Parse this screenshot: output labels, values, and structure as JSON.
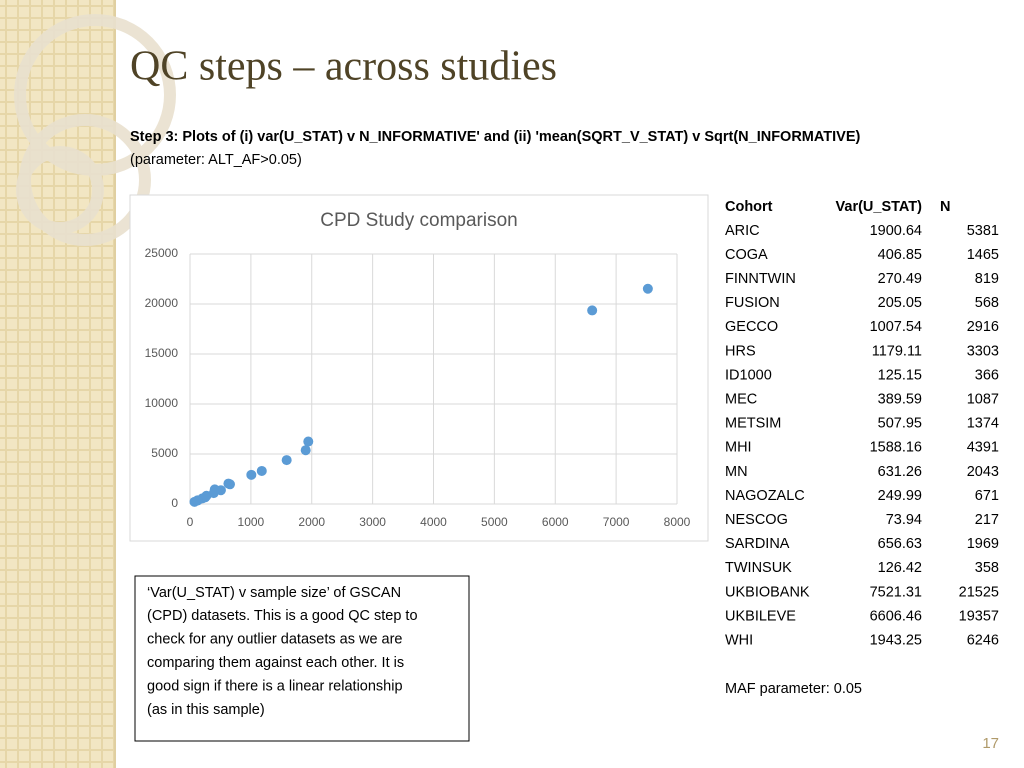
{
  "header": {
    "title": "QC steps – across studies"
  },
  "subtitle": {
    "lines": [
      "Step 3: Plots of (i) var(U_STAT) v N_INFORMATIVE' and (ii) 'mean(SQRT_V_STAT) v Sqrt(N_INFORMATIVE)",
      "(parameter: ALT_AF>0.05)"
    ]
  },
  "chart_data": {
    "type": "scatter",
    "title": "CPD Study comparison",
    "x": [
      1900.64,
      406.85,
      270.49,
      205.05,
      1007.54,
      1179.11,
      125.15,
      389.59,
      507.95,
      1588.16,
      631.26,
      249.99,
      73.94,
      656.63,
      126.42,
      7521.31,
      6606.46,
      1943.25
    ],
    "values": [
      5381,
      1465,
      819,
      568,
      2916,
      3303,
      366,
      1087,
      1374,
      4391,
      2043,
      671,
      217,
      1969,
      358,
      21525,
      19357,
      6246
    ],
    "color": "#5b9bd5",
    "xlim": [
      0,
      8000
    ],
    "xticks": [
      0,
      1000,
      2000,
      3000,
      4000,
      5000,
      6000,
      7000,
      8000
    ],
    "ylim": [
      0,
      25000
    ],
    "yticks": [
      0,
      5000,
      10000,
      15000,
      20000,
      25000
    ],
    "grid": true
  },
  "note": {
    "lines": [
      "‘Var(U_STAT) v sample size’ of GSCAN",
      "(CPD) datasets. This is a good QC step to",
      "check for any outlier datasets as we are",
      "comparing them against each other. It is",
      "good sign if there is a linear relationship",
      "(as in this sample)"
    ]
  },
  "table": {
    "header": [
      "Cohort",
      "Var(U_STAT)",
      "N"
    ],
    "rows": [
      [
        "ARIC",
        "1900.64",
        "5381"
      ],
      [
        "COGA",
        "406.85",
        "1465"
      ],
      [
        "FINNTWIN",
        "270.49",
        "819"
      ],
      [
        "FUSION",
        "205.05",
        "568"
      ],
      [
        "GECCO",
        "1007.54",
        "2916"
      ],
      [
        "HRS",
        "1179.11",
        "3303"
      ],
      [
        "ID1000",
        "125.15",
        "366"
      ],
      [
        "MEC",
        "389.59",
        "1087"
      ],
      [
        "METSIM",
        "507.95",
        "1374"
      ],
      [
        "MHI",
        "1588.16",
        "4391"
      ],
      [
        "MN",
        "631.26",
        "2043"
      ],
      [
        "NAGOZALC",
        "249.99",
        "671"
      ],
      [
        "NESCOG",
        "73.94",
        "217"
      ],
      [
        "SARDINA",
        "656.63",
        "1969"
      ],
      [
        "TWINSUK",
        "126.42",
        "358"
      ],
      [
        "UKBIOBANK",
        "7521.31",
        "21525"
      ],
      [
        "UKBILEVE",
        "6606.46",
        "19357"
      ],
      [
        "WHI",
        "1943.25",
        "6246"
      ]
    ]
  },
  "footnote": "MAF parameter: 0.05",
  "page_number": "17"
}
